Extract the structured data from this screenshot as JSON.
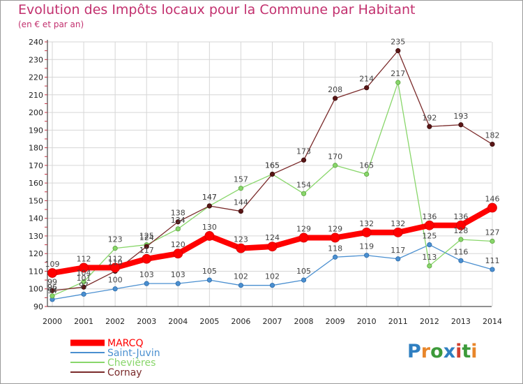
{
  "title": "Evolution des Impôts locaux pour la Commune par Habitant",
  "subtitle": "(en € et par an)",
  "logo": {
    "text": "Proxiti",
    "letter_colors": [
      "#2f7fc1",
      "#e8862a",
      "#3d9a3a",
      "#2f7fc1",
      "#d2402f",
      "#3d9a3a",
      "#e8862a"
    ]
  },
  "chart_data": {
    "type": "line",
    "title": "Evolution des Impôts locaux pour la Commune par Habitant",
    "subtitle": "(en € et par an)",
    "x": [
      "2000",
      "2001",
      "2002",
      "2003",
      "2004",
      "2005",
      "2006",
      "2007",
      "2008",
      "2009",
      "2010",
      "2011",
      "2012",
      "2013",
      "2014"
    ],
    "ylim": [
      90,
      240
    ],
    "yticks": [
      90,
      100,
      110,
      120,
      130,
      140,
      150,
      160,
      170,
      180,
      190,
      200,
      210,
      220,
      230,
      240
    ],
    "grid": true,
    "legend_position": "bottom-left",
    "series": [
      {
        "name": "MARCQ",
        "color": "#ff0000",
        "values": [
          109,
          112,
          112,
          117,
          120,
          130,
          123,
          124,
          129,
          129,
          132,
          132,
          136,
          136,
          146
        ]
      },
      {
        "name": "Saint-Juvin",
        "color": "#4a8fd0",
        "values": [
          94,
          97,
          100,
          103,
          103,
          105,
          102,
          102,
          105,
          118,
          119,
          117,
          125,
          116,
          111
        ]
      },
      {
        "name": "Chevières",
        "color": "#88d66a",
        "values": [
          96,
          104,
          123,
          125,
          134,
          147,
          157,
          165,
          154,
          170,
          165,
          217,
          113,
          128,
          127
        ]
      },
      {
        "name": "Cornay",
        "color": "#7a2a2a",
        "values": [
          99,
          101,
          110,
          124,
          138,
          147,
          144,
          165,
          173,
          208,
          214,
          235,
          192,
          193,
          182
        ]
      }
    ]
  }
}
